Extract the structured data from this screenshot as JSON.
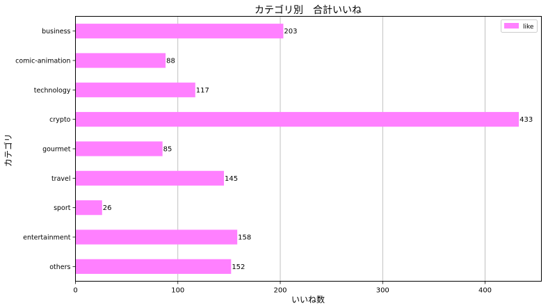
{
  "chart_data": {
    "type": "bar",
    "orientation": "horizontal",
    "title": "カテゴリ別　合計いいね",
    "xlabel": "いいね数",
    "ylabel": "カテゴリ",
    "categories": [
      "business",
      "comic-animation",
      "technology",
      "crypto",
      "gourmet",
      "travel",
      "sport",
      "entertainment",
      "others"
    ],
    "series": [
      {
        "name": "like",
        "values": [
          203,
          88,
          117,
          433,
          85,
          145,
          26,
          158,
          152
        ]
      }
    ],
    "xlim": [
      0,
      455
    ],
    "xticks": [
      0,
      100,
      200,
      300,
      400
    ],
    "grid": "vertical",
    "legend": "top-right",
    "bar_color": "#ff80ff",
    "data_labels": true
  }
}
